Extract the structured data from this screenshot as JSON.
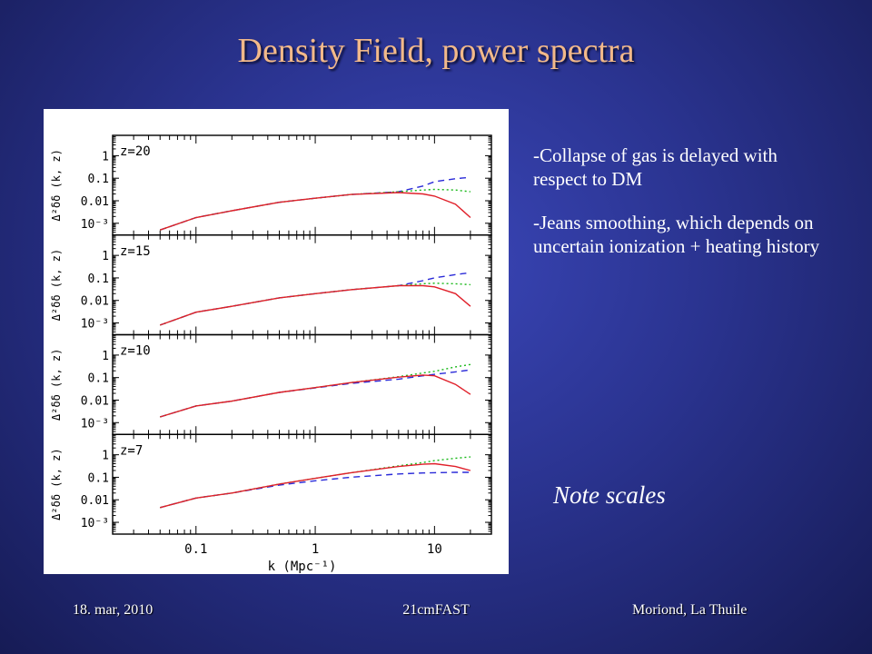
{
  "slide": {
    "title": "Density Field, power spectra",
    "bullets": [
      "-Collapse of gas is delayed with respect to DM",
      "-Jeans smoothing, which depends on uncertain ionization + heating history"
    ],
    "note": "Note scales",
    "footer": {
      "left": "18. mar, 2010",
      "center": "21cmFAST",
      "right": "Moriond, La Thuile"
    }
  },
  "chart_data": {
    "type": "line",
    "xlabel": "k (Mpc⁻¹)",
    "ylabel": "Δ²δδ (k, z)",
    "x_scale": "log",
    "y_scale": "log",
    "xlim": [
      0.02,
      30
    ],
    "ylim": [
      0.0003,
      8
    ],
    "x_ticks": [
      {
        "v": 0.1,
        "label": "0.1"
      },
      {
        "v": 1,
        "label": "1"
      },
      {
        "v": 10,
        "label": "10"
      }
    ],
    "y_ticks": [
      {
        "v": 1,
        "label": "1"
      },
      {
        "v": 0.1,
        "label": "0.1"
      },
      {
        "v": 0.01,
        "label": "0.01"
      },
      {
        "v": 0.001,
        "label": "10⁻³"
      }
    ],
    "series_styles": [
      {
        "color": "#2a2ad8",
        "dash": "7,5"
      },
      {
        "color": "#18b818",
        "dash": "2,3"
      },
      {
        "color": "#e0202a",
        "dash": ""
      }
    ],
    "panels": [
      {
        "label": "z=20",
        "x": [
          0.05,
          0.1,
          0.2,
          0.5,
          1,
          2,
          5,
          8,
          10,
          15,
          20
        ],
        "series": [
          {
            "values": [
              0.0005,
              0.0018,
              0.0036,
              0.0085,
              0.013,
              0.019,
              0.025,
              0.045,
              0.07,
              0.095,
              0.11
            ]
          },
          {
            "values": [
              0.0005,
              0.0018,
              0.0036,
              0.0085,
              0.013,
              0.019,
              0.025,
              0.03,
              0.032,
              0.03,
              0.025
            ]
          },
          {
            "values": [
              0.0005,
              0.0018,
              0.0036,
              0.0085,
              0.013,
              0.019,
              0.023,
              0.02,
              0.016,
              0.007,
              0.0018
            ]
          }
        ]
      },
      {
        "label": "z=15",
        "x": [
          0.05,
          0.1,
          0.2,
          0.5,
          1,
          2,
          5,
          8,
          10,
          15,
          20
        ],
        "series": [
          {
            "values": [
              0.0008,
              0.003,
              0.0055,
              0.013,
              0.02,
              0.03,
              0.045,
              0.075,
              0.1,
              0.14,
              0.17
            ]
          },
          {
            "values": [
              0.0008,
              0.003,
              0.0055,
              0.013,
              0.02,
              0.03,
              0.045,
              0.055,
              0.058,
              0.055,
              0.05
            ]
          },
          {
            "values": [
              0.0008,
              0.003,
              0.0055,
              0.013,
              0.02,
              0.03,
              0.045,
              0.045,
              0.04,
              0.02,
              0.0055
            ]
          }
        ]
      },
      {
        "label": "z=10",
        "x": [
          0.05,
          0.1,
          0.2,
          0.5,
          1,
          2,
          5,
          8,
          10,
          15,
          20
        ],
        "series": [
          {
            "values": [
              0.0018,
              0.0055,
              0.009,
              0.022,
              0.035,
              0.055,
              0.085,
              0.12,
              0.14,
              0.18,
              0.22
            ]
          },
          {
            "values": [
              0.0018,
              0.0055,
              0.009,
              0.022,
              0.036,
              0.06,
              0.11,
              0.16,
              0.19,
              0.3,
              0.38
            ]
          },
          {
            "values": [
              0.0018,
              0.0055,
              0.009,
              0.022,
              0.036,
              0.06,
              0.105,
              0.13,
              0.12,
              0.05,
              0.018
            ]
          }
        ]
      },
      {
        "label": "z=7",
        "x": [
          0.05,
          0.1,
          0.2,
          0.5,
          1,
          2,
          5,
          8,
          10,
          15,
          20
        ],
        "series": [
          {
            "values": [
              0.0045,
              0.012,
              0.02,
              0.045,
              0.07,
              0.1,
              0.14,
              0.155,
              0.16,
              0.165,
              0.165
            ]
          },
          {
            "values": [
              0.0045,
              0.012,
              0.02,
              0.05,
              0.09,
              0.16,
              0.32,
              0.45,
              0.55,
              0.7,
              0.8
            ]
          },
          {
            "values": [
              0.0045,
              0.012,
              0.02,
              0.05,
              0.09,
              0.16,
              0.3,
              0.38,
              0.4,
              0.3,
              0.2
            ]
          }
        ]
      }
    ]
  }
}
